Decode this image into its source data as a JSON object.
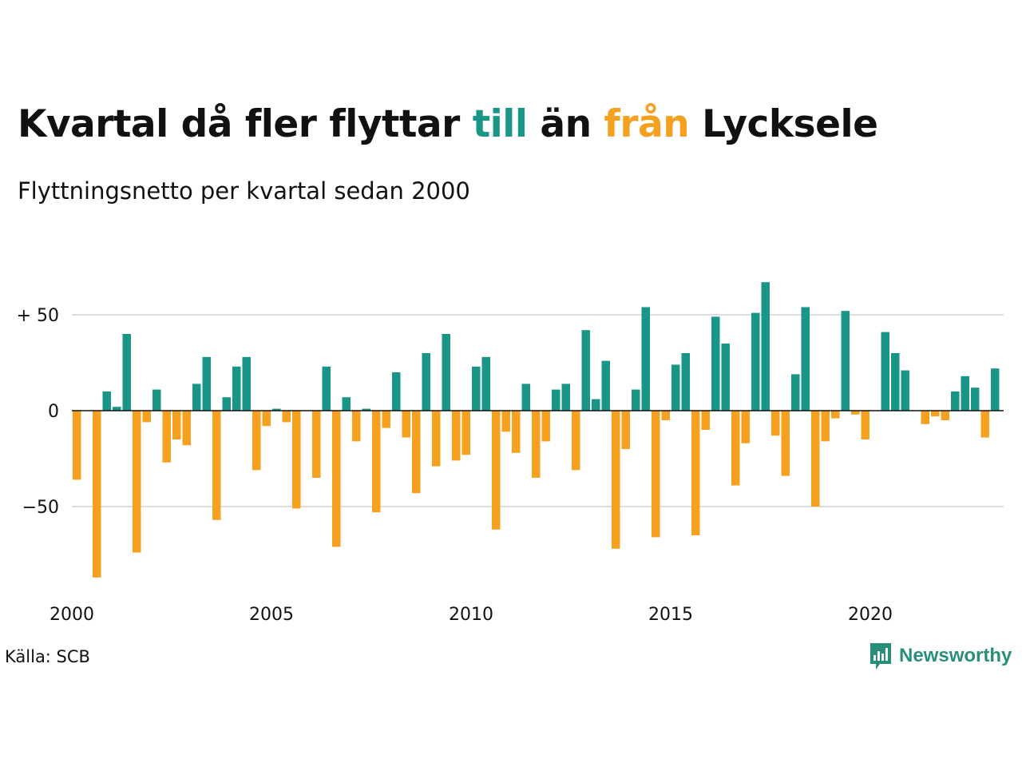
{
  "header": {
    "title_parts": [
      "Kvartal då fler flyttar ",
      "till",
      " än ",
      "från",
      " Lycksele"
    ],
    "subtitle": "Flyttningsnetto per kvartal sedan 2000"
  },
  "footer": {
    "source": "Källa: SCB",
    "logo_text": "Newsworthy",
    "logo_icon": "newsworthy-bar-chart-icon"
  },
  "colors": {
    "positive": "#1a9688",
    "negative": "#f5a01f",
    "text": "#111111",
    "grid": "#dddddd",
    "zero_line": "#111111",
    "logo": "#2a8f7a"
  },
  "chart_data": {
    "type": "bar",
    "title": "Kvartal då fler flyttar till än från Lycksele",
    "subtitle": "Flyttningsnetto per kvartal sedan 2000",
    "xlabel": "",
    "ylabel": "",
    "x_start": 2000,
    "periods_per_year": 4,
    "x_ticks": [
      2000,
      2005,
      2010,
      2015,
      2020
    ],
    "x_tick_labels": [
      "2000",
      "2005",
      "2010",
      "2015",
      "2020"
    ],
    "y_ticks": [
      50,
      0,
      -50
    ],
    "y_tick_labels": [
      "+ 50",
      "0",
      "−50"
    ],
    "ylim": [
      -90,
      70
    ],
    "grid": true,
    "color_rule": "positive values = till (teal), negative values = från (orange)",
    "values": [
      -36,
      0,
      -87,
      10,
      2,
      40,
      -74,
      -6,
      11,
      -27,
      -15,
      -18,
      14,
      28,
      -57,
      7,
      23,
      28,
      -31,
      -8,
      1,
      -6,
      -51,
      0,
      -35,
      23,
      -71,
      7,
      -16,
      1,
      -53,
      -9,
      20,
      -14,
      -43,
      30,
      -29,
      40,
      -26,
      -23,
      23,
      28,
      -62,
      -11,
      -22,
      14,
      -35,
      -16,
      11,
      14,
      -31,
      42,
      6,
      26,
      -72,
      -20,
      11,
      54,
      -66,
      -5,
      24,
      30,
      -65,
      -10,
      49,
      35,
      -39,
      -17,
      51,
      67,
      -13,
      -34,
      19,
      54,
      -50,
      -16,
      -4,
      52,
      -2,
      -15,
      0,
      41,
      30,
      21,
      0,
      -7,
      -3,
      -5,
      10,
      18,
      12,
      -14,
      22
    ]
  }
}
